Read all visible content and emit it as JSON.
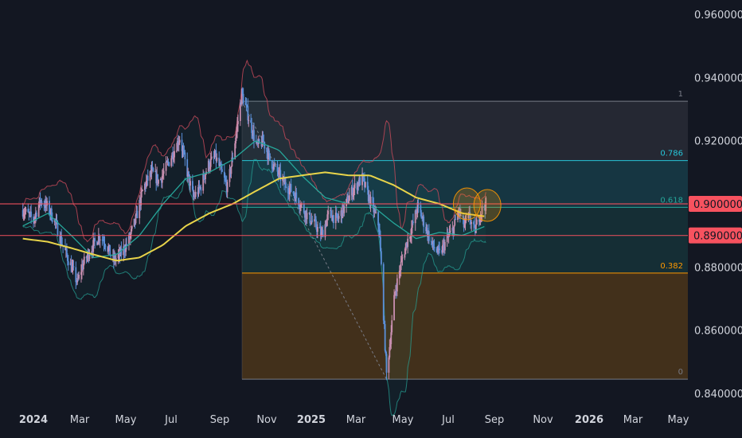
{
  "chart_data": {
    "type": "candlestick",
    "title": "",
    "price_axis": {
      "range": [
        0.84,
        0.96
      ],
      "ticks": [
        "0.960000",
        "0.940000",
        "0.920000",
        "0.900000",
        "0.880000",
        "0.860000",
        "0.840000"
      ],
      "highlighted_levels": [
        {
          "value": 0.9,
          "label": "0.900000"
        },
        {
          "value": 0.89,
          "label": "0.890000"
        }
      ]
    },
    "time_axis": {
      "ticks": [
        {
          "label": "2024",
          "bold": true
        },
        {
          "label": "Mar",
          "bold": false
        },
        {
          "label": "May",
          "bold": false
        },
        {
          "label": "Jul",
          "bold": false
        },
        {
          "label": "Sep",
          "bold": false
        },
        {
          "label": "Nov",
          "bold": false
        },
        {
          "label": "2025",
          "bold": true
        },
        {
          "label": "Mar",
          "bold": false
        },
        {
          "label": "May",
          "bold": false
        },
        {
          "label": "Jul",
          "bold": false
        },
        {
          "label": "Sep",
          "bold": false
        },
        {
          "label": "Nov",
          "bold": false
        },
        {
          "label": "2026",
          "bold": true
        },
        {
          "label": "Mar",
          "bold": false
        },
        {
          "label": "May",
          "bold": false
        }
      ]
    },
    "fibonacci": {
      "from_price": 0.9325,
      "to_price": 0.8445,
      "levels": [
        {
          "ratio": "1",
          "price": 0.9325
        },
        {
          "ratio": "0.786",
          "price": 0.9137
        },
        {
          "ratio": "0.618",
          "price": 0.8989
        },
        {
          "ratio": "0.382",
          "price": 0.8781
        },
        {
          "ratio": "0",
          "price": 0.8445
        }
      ]
    },
    "horizontal_lines": [
      0.9,
      0.89
    ],
    "price_path": [
      [
        "2023-12-18",
        0.898
      ],
      [
        "2024-01-01",
        0.895
      ],
      [
        "2024-01-10",
        0.901
      ],
      [
        "2024-01-20",
        0.899
      ],
      [
        "2024-01-30",
        0.894
      ],
      [
        "2024-02-10",
        0.886
      ],
      [
        "2024-02-20",
        0.88
      ],
      [
        "2024-02-28",
        0.875
      ],
      [
        "2024-03-05",
        0.88
      ],
      [
        "2024-03-15",
        0.885
      ],
      [
        "2024-03-28",
        0.89
      ],
      [
        "2024-04-05",
        0.888
      ],
      [
        "2024-04-15",
        0.882
      ],
      [
        "2024-04-25",
        0.884
      ],
      [
        "2024-05-05",
        0.888
      ],
      [
        "2024-05-15",
        0.895
      ],
      [
        "2024-05-25",
        0.905
      ],
      [
        "2024-06-05",
        0.91
      ],
      [
        "2024-06-15",
        0.907
      ],
      [
        "2024-06-25",
        0.912
      ],
      [
        "2024-07-03",
        0.916
      ],
      [
        "2024-07-12",
        0.921
      ],
      [
        "2024-07-22",
        0.91
      ],
      [
        "2024-07-30",
        0.902
      ],
      [
        "2024-08-08",
        0.905
      ],
      [
        "2024-08-18",
        0.912
      ],
      [
        "2024-08-28",
        0.915
      ],
      [
        "2024-09-05",
        0.91
      ],
      [
        "2024-09-13",
        0.905
      ],
      [
        "2024-09-20",
        0.915
      ],
      [
        "2024-09-28",
        0.928
      ],
      [
        "2024-10-02",
        0.935
      ],
      [
        "2024-10-08",
        0.93
      ],
      [
        "2024-10-15",
        0.924
      ],
      [
        "2024-10-22",
        0.918
      ],
      [
        "2024-10-30",
        0.92
      ],
      [
        "2024-11-08",
        0.914
      ],
      [
        "2024-11-18",
        0.91
      ],
      [
        "2024-11-28",
        0.906
      ],
      [
        "2024-12-08",
        0.904
      ],
      [
        "2024-12-18",
        0.9
      ],
      [
        "2024-12-28",
        0.896
      ],
      [
        "2025-01-08",
        0.893
      ],
      [
        "2025-01-15",
        0.89
      ],
      [
        "2025-01-25",
        0.897
      ],
      [
        "2025-02-05",
        0.895
      ],
      [
        "2025-02-15",
        0.899
      ],
      [
        "2025-02-22",
        0.903
      ],
      [
        "2025-03-02",
        0.906
      ],
      [
        "2025-03-10",
        0.908
      ],
      [
        "2025-03-17",
        0.903
      ],
      [
        "2025-03-25",
        0.898
      ],
      [
        "2025-04-01",
        0.893
      ],
      [
        "2025-04-04",
        0.88
      ],
      [
        "2025-04-08",
        0.86
      ],
      [
        "2025-04-11",
        0.846
      ],
      [
        "2025-04-15",
        0.855
      ],
      [
        "2025-04-22",
        0.872
      ],
      [
        "2025-05-01",
        0.882
      ],
      [
        "2025-05-08",
        0.888
      ],
      [
        "2025-05-15",
        0.893
      ],
      [
        "2025-05-22",
        0.899
      ],
      [
        "2025-06-01",
        0.893
      ],
      [
        "2025-06-10",
        0.887
      ],
      [
        "2025-06-20",
        0.884
      ],
      [
        "2025-06-30",
        0.889
      ],
      [
        "2025-07-08",
        0.892
      ],
      [
        "2025-07-15",
        0.898
      ],
      [
        "2025-07-22",
        0.893
      ],
      [
        "2025-07-29",
        0.896
      ],
      [
        "2025-08-05",
        0.891
      ],
      [
        "2025-08-12",
        0.897
      ],
      [
        "2025-08-20",
        0.9
      ]
    ],
    "moving_average_yellow": [
      [
        "2023-12-18",
        0.889
      ],
      [
        "2024-01-20",
        0.888
      ],
      [
        "2024-02-20",
        0.886
      ],
      [
        "2024-03-20",
        0.884
      ],
      [
        "2024-04-20",
        0.882
      ],
      [
        "2024-05-20",
        0.883
      ],
      [
        "2024-06-20",
        0.887
      ],
      [
        "2024-07-20",
        0.893
      ],
      [
        "2024-08-20",
        0.897
      ],
      [
        "2024-09-20",
        0.9
      ],
      [
        "2024-10-20",
        0.904
      ],
      [
        "2024-11-20",
        0.908
      ],
      [
        "2024-12-20",
        0.909
      ],
      [
        "2025-01-20",
        0.91
      ],
      [
        "2025-02-20",
        0.909
      ],
      [
        "2025-03-20",
        0.909
      ],
      [
        "2025-04-20",
        0.906
      ],
      [
        "2025-05-20",
        0.902
      ],
      [
        "2025-06-20",
        0.9
      ],
      [
        "2025-07-20",
        0.897
      ],
      [
        "2025-08-20",
        0.896
      ]
    ],
    "moving_average_teal": [
      [
        "2023-12-18",
        0.893
      ],
      [
        "2024-01-20",
        0.897
      ],
      [
        "2024-02-20",
        0.89
      ],
      [
        "2024-03-20",
        0.883
      ],
      [
        "2024-04-20",
        0.884
      ],
      [
        "2024-05-20",
        0.89
      ],
      [
        "2024-06-20",
        0.9
      ],
      [
        "2024-07-20",
        0.908
      ],
      [
        "2024-08-20",
        0.91
      ],
      [
        "2024-09-20",
        0.914
      ],
      [
        "2024-10-20",
        0.92
      ],
      [
        "2024-11-20",
        0.917
      ],
      [
        "2024-12-20",
        0.909
      ],
      [
        "2025-01-20",
        0.902
      ],
      [
        "2025-02-20",
        0.9
      ],
      [
        "2025-03-20",
        0.9
      ],
      [
        "2025-04-20",
        0.894
      ],
      [
        "2025-05-20",
        0.889
      ],
      [
        "2025-06-20",
        0.891
      ],
      [
        "2025-07-20",
        0.89
      ],
      [
        "2025-08-20",
        0.893
      ]
    ],
    "circle_annotations": [
      {
        "date": "2025-07-26",
        "price": 0.9
      },
      {
        "date": "2025-08-22",
        "price": 0.8995
      }
    ],
    "colors": {
      "background": "#131722",
      "up": "#c98fb0",
      "down": "#5b8fd9",
      "ma_yellow": "#e8d44a",
      "ma_teal": "#26a69a",
      "band": "#c94a5a",
      "line_red": "#f7525f",
      "fib_1": "#787b86",
      "fib_786": "#26c6da",
      "fib_618": "#26a69a",
      "fib_382": "#ff9800",
      "fib_0": "#787b86"
    }
  }
}
